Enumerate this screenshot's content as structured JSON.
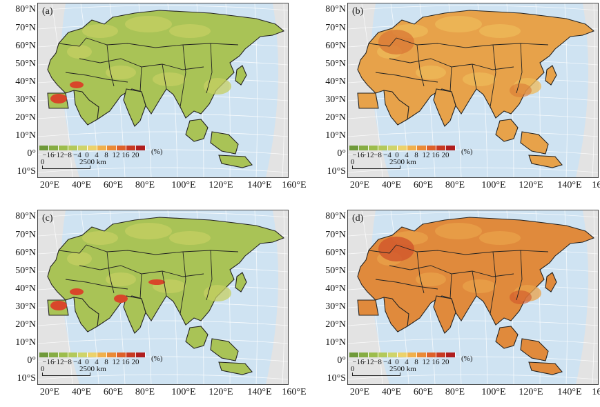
{
  "lat_labels": [
    "80°N",
    "70°N",
    "60°N",
    "50°N",
    "40°N",
    "30°N",
    "20°N",
    "10°N",
    "0°",
    "10°S"
  ],
  "lon_labels": [
    "20°E",
    "40°E",
    "60°E",
    "80°E",
    "100°E",
    "120°E",
    "140°E",
    "160°E"
  ],
  "legend": {
    "ticks": [
      "−16",
      "−12",
      "−8",
      "−4",
      "0",
      "4",
      "8",
      "12",
      "16",
      "20"
    ],
    "unit": "(%)",
    "colors": [
      "#6f9a3a",
      "#86ad43",
      "#9dbd4c",
      "#b3c95a",
      "#cfd46a",
      "#ecd26a",
      "#f0b04c",
      "#ea8a36",
      "#de612a",
      "#c83a22",
      "#b01e1e"
    ]
  },
  "scale_bar": {
    "zero": "0",
    "distance": "2500 km"
  },
  "panels": [
    {
      "tag": "(a)",
      "scheme": "green"
    },
    {
      "tag": "(b)",
      "scheme": "orange"
    },
    {
      "tag": "(c)",
      "scheme": "green"
    },
    {
      "tag": "(d)",
      "scheme": "darkorange"
    }
  ]
}
